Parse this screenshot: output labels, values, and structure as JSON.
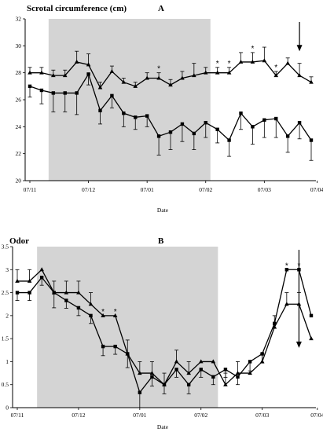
{
  "chart_data": [
    {
      "type": "line",
      "panel_letter": "A",
      "title": "Scrotal circumference (cm)",
      "xlabel": "Date",
      "ylabel": "",
      "ylim": [
        20,
        32
      ],
      "yticks": [
        20,
        22,
        24,
        26,
        28,
        30,
        32
      ],
      "x_dates": [
        "07/11",
        "07/11",
        "07/11",
        "07/11",
        "07/12",
        "07/12",
        "07/12",
        "07/12",
        "07/12",
        "07/01",
        "07/01",
        "07/01",
        "07/01",
        "07/01",
        "07/02",
        "07/02",
        "07/02",
        "07/02",
        "07/02",
        "07/03",
        "07/03",
        "07/03",
        "07/03",
        "07/04",
        "07/04",
        "07/04",
        "07/04",
        "07/04"
      ],
      "x_tick_labels": [
        "07/11",
        "07/12",
        "07/01",
        "07/02",
        "07/03",
        "07/04"
      ],
      "shaded_range": [
        2,
        15
      ],
      "arrow_at": 23,
      "series": [
        {
          "marker": "triangle",
          "values": [
            28.0,
            28.0,
            27.8,
            27.8,
            28.8,
            28.6,
            26.9,
            28.1,
            27.3,
            27.0,
            27.6,
            27.6,
            27.1,
            27.6,
            27.8,
            28.0,
            28.0,
            28.0,
            28.8,
            28.8,
            28.9,
            27.8,
            28.7,
            27.8,
            27.3
          ],
          "errors": [
            0.4,
            0.4,
            0.4,
            0.4,
            0.8,
            0.8,
            0.4,
            0.4,
            0.3,
            0.3,
            0.4,
            0.4,
            0.4,
            0.5,
            0.9,
            0.4,
            0.4,
            0.4,
            0.7,
            0.7,
            1.0,
            0.3,
            0.4,
            0.9,
            0.4
          ],
          "x_index": [
            0,
            1,
            2,
            3,
            4,
            5,
            6,
            7,
            8,
            9,
            10,
            11,
            12,
            13,
            14,
            15,
            16,
            17,
            18,
            19,
            20,
            21,
            22,
            23,
            24
          ],
          "significant_indices": [
            11,
            16,
            17,
            19,
            21
          ]
        },
        {
          "marker": "square",
          "values": [
            27.0,
            26.7,
            26.5,
            26.5,
            26.5,
            27.9,
            25.2,
            26.3,
            25.0,
            24.7,
            24.8,
            23.3,
            23.6,
            24.2,
            23.5,
            24.3,
            23.8,
            23.0,
            25.0,
            24.0,
            24.5,
            24.6,
            23.3,
            24.3,
            23.0
          ],
          "errors": [
            0.8,
            1.0,
            1.4,
            1.4,
            1.6,
            0.8,
            1.0,
            0.9,
            1.0,
            0.9,
            0.8,
            1.4,
            1.3,
            1.3,
            1.2,
            1.1,
            1.0,
            1.2,
            1.2,
            1.3,
            1.3,
            1.4,
            1.2,
            1.2,
            1.5
          ],
          "x_index": [
            0,
            1,
            2,
            3,
            4,
            5,
            6,
            7,
            8,
            9,
            10,
            11,
            12,
            13,
            14,
            15,
            16,
            17,
            18,
            19,
            20,
            21,
            22,
            23,
            24
          ]
        }
      ]
    },
    {
      "type": "line",
      "panel_letter": "B",
      "title": "Odor",
      "xlabel": "Date",
      "ylabel": "",
      "ylim": [
        0,
        3.5
      ],
      "yticks": [
        0,
        0.5,
        1,
        1.5,
        2,
        2.5,
        3,
        3.5
      ],
      "x_tick_labels": [
        "07/11",
        "07/12",
        "07/01",
        "07/02",
        "07/03",
        "07/04"
      ],
      "shaded_range": [
        2,
        16
      ],
      "arrow_at": 23,
      "series": [
        {
          "marker": "triangle",
          "values": [
            2.75,
            2.75,
            3.0,
            2.5,
            2.5,
            2.5,
            2.25,
            2.0,
            2.0,
            1.17,
            0.75,
            0.75,
            0.5,
            1.0,
            0.75,
            1.0,
            1.0,
            0.5,
            0.75,
            0.75,
            1.0,
            1.75,
            2.25,
            2.25,
            1.5
          ],
          "errors": [
            0.25,
            0.25,
            0.0,
            0.25,
            0.25,
            0.25,
            0.25,
            0.0,
            0.0,
            0.3,
            0.25,
            0.25,
            0.25,
            0.25,
            0.25,
            0.0,
            0.0,
            0.25,
            0.25,
            0.0,
            0.17,
            0.25,
            0.25,
            0.25,
            0.0
          ],
          "x_index": [
            0,
            1,
            2,
            3,
            4,
            5,
            6,
            7,
            8,
            9,
            10,
            11,
            12,
            13,
            14,
            15,
            16,
            17,
            18,
            19,
            20,
            21,
            22,
            23,
            24
          ],
          "significant_indices": [
            7,
            8
          ]
        },
        {
          "marker": "square",
          "values": [
            2.5,
            2.5,
            2.83,
            2.5,
            2.33,
            2.17,
            2.0,
            1.33,
            1.33,
            1.17,
            0.33,
            0.67,
            0.5,
            0.83,
            0.5,
            0.83,
            0.67,
            0.83,
            0.67,
            1.0,
            1.17,
            1.83,
            3.0,
            3.0,
            2.0
          ],
          "errors": [
            0.17,
            0.17,
            0.17,
            0.33,
            0.17,
            0.17,
            0.17,
            0.2,
            0.17,
            0.3,
            0.33,
            0.2,
            0.2,
            0.17,
            0.2,
            0.17,
            0.17,
            0.17,
            0.17,
            0.2,
            0.2,
            0.1,
            0.0,
            0.0,
            0.0
          ],
          "x_index": [
            0,
            1,
            2,
            3,
            4,
            5,
            6,
            7,
            8,
            9,
            10,
            11,
            12,
            13,
            14,
            15,
            16,
            17,
            18,
            19,
            20,
            21,
            22,
            23,
            24
          ],
          "significant_indices": [
            22,
            23
          ]
        }
      ]
    }
  ]
}
